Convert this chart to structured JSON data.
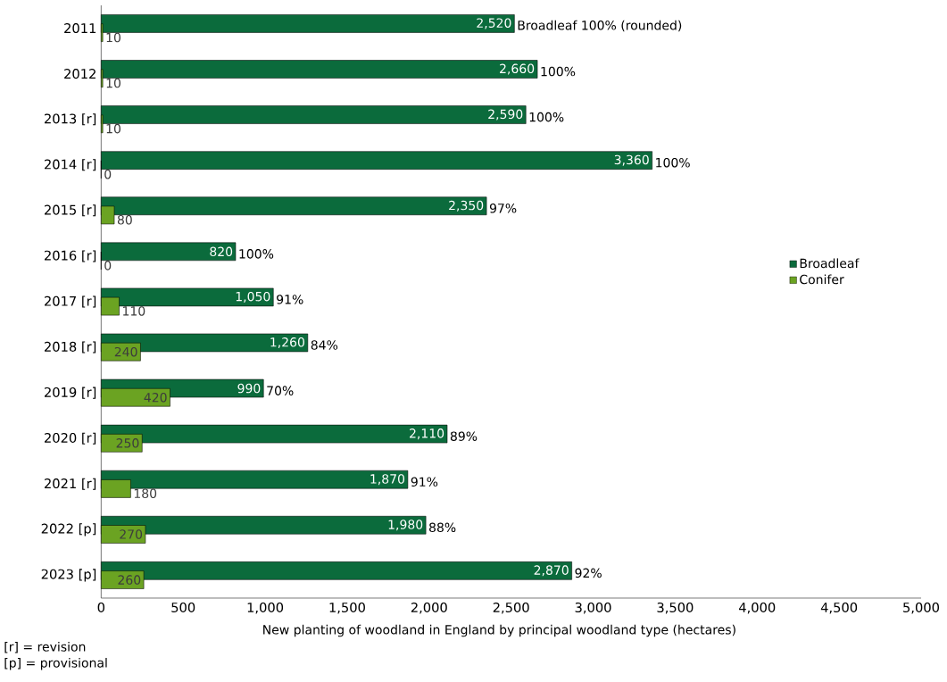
{
  "chart_data": {
    "type": "bar",
    "orientation": "horizontal",
    "xlabel": "New planting of woodland in England by principal woodland type (hectares)",
    "categories": [
      "2011",
      "2012",
      "2013 [r]",
      "2014 [r]",
      "2015 [r]",
      "2016 [r]",
      "2017 [r]",
      "2018 [r]",
      "2019 [r]",
      "2020 [r]",
      "2021 [r]",
      "2022 [p]",
      "2023 [p]"
    ],
    "series": [
      {
        "name": "Broadleaf",
        "color": "#0b6b3c",
        "values": [
          2520,
          2660,
          2590,
          3360,
          2350,
          820,
          1050,
          1260,
          990,
          2110,
          1870,
          1980,
          2870
        ],
        "value_labels": [
          "2,520",
          "2,660",
          "2,590",
          "3,360",
          "2,350",
          "820",
          "1,050",
          "1,260",
          "990",
          "2,110",
          "1,870",
          "1,980",
          "2,870"
        ]
      },
      {
        "name": "Conifer",
        "color": "#6ba322",
        "values": [
          10,
          10,
          10,
          0,
          80,
          0,
          110,
          240,
          420,
          250,
          180,
          270,
          260
        ],
        "value_labels": [
          "10",
          "10",
          "10",
          "0",
          "80",
          "0",
          "110",
          "240",
          "420",
          "250",
          "180",
          "270",
          "260"
        ]
      }
    ],
    "xlim": [
      0,
      5000
    ],
    "xticks": [
      0,
      500,
      {
        "value": 1000,
        "label": "1,000"
      },
      {
        "value": 1500,
        "label": "1,500"
      },
      {
        "value": 2000,
        "label": "2,000"
      },
      {
        "value": 2500,
        "label": "2,500"
      },
      {
        "value": 3000,
        "label": "3,000"
      },
      {
        "value": 3500,
        "label": "3,500"
      },
      {
        "value": 4000,
        "label": "4,000"
      },
      {
        "value": 4500,
        "label": "4,500"
      },
      {
        "value": 5000,
        "label": "5,000"
      }
    ],
    "legend": "right",
    "grid": false,
    "annotations": [
      {
        "text": "Broadleaf 100% (rounded)",
        "x": 2520,
        "y": "2011"
      },
      {
        "text": "100%",
        "x": 2660,
        "y": "2012"
      },
      {
        "text": "100%",
        "x": 2590,
        "y": "2013 [r]"
      },
      {
        "text": "100%",
        "x": 3360,
        "y": "2014 [r]"
      },
      {
        "text": "97%",
        "x": 2350,
        "y": "2015 [r]"
      },
      {
        "text": "100%",
        "x": 820,
        "y": "2016 [r]"
      },
      {
        "text": "91%",
        "x": 1050,
        "y": "2017 [r]"
      },
      {
        "text": "84%",
        "x": 1260,
        "y": "2018 [r]"
      },
      {
        "text": "70%",
        "x": 990,
        "y": "2019 [r]"
      },
      {
        "text": "89%",
        "x": 2110,
        "y": "2020 [r]"
      },
      {
        "text": "91%",
        "x": 1870,
        "y": "2021 [r]"
      },
      {
        "text": "88%",
        "x": 1980,
        "y": "2022 [p]"
      },
      {
        "text": "92%",
        "x": 2870,
        "y": "2023 [p]"
      },
      "[r] = revision",
      "[p] = provisional"
    ]
  }
}
